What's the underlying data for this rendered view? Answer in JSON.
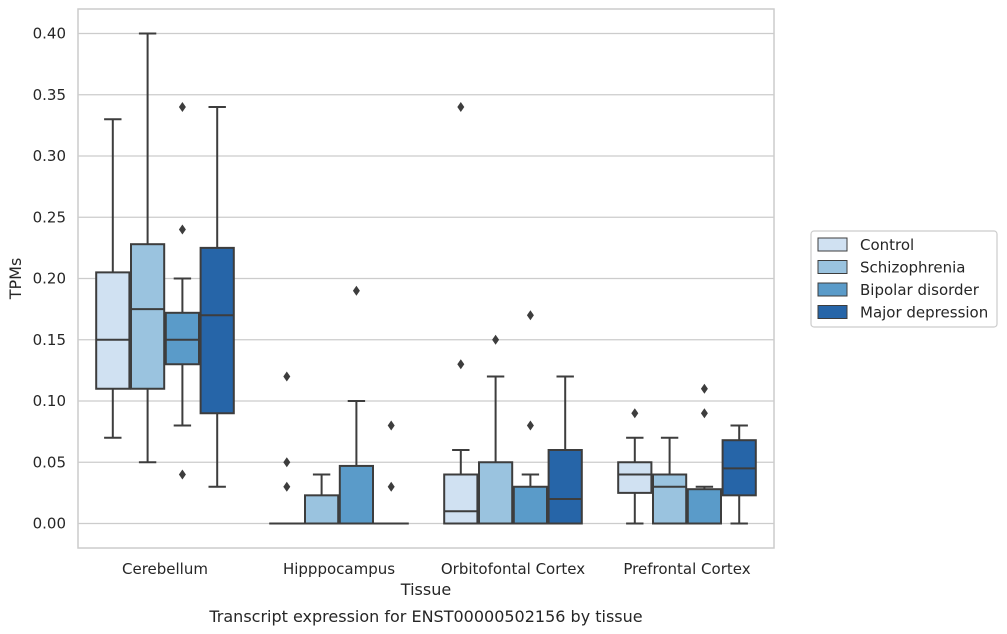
{
  "chart_data": {
    "type": "box",
    "title": "Transcript expression for ENST00000502156 by tissue",
    "xlabel": "Tissue",
    "ylabel": "TPMs",
    "ylim": [
      -0.02,
      0.42
    ],
    "yticks": [
      "0.00",
      "0.05",
      "0.10",
      "0.15",
      "0.20",
      "0.25",
      "0.30",
      "0.35",
      "0.40"
    ],
    "grid": "horizontal",
    "legend_position": "right",
    "categories": [
      "Cerebellum",
      "Hipppocampus",
      "Orbitofontal Cortex",
      "Prefrontal Cortex"
    ],
    "series": [
      {
        "name": "Control",
        "color": "#d0e1f2",
        "boxes": [
          {
            "whislo": 0.07,
            "q1": 0.11,
            "med": 0.15,
            "q3": 0.205,
            "whishi": 0.33,
            "fliers": []
          },
          {
            "whislo": 0.0,
            "q1": 0.0,
            "med": 0.0,
            "q3": 0.0,
            "whishi": 0.0,
            "fliers": [
              0.03,
              0.05,
              0.12
            ]
          },
          {
            "whislo": 0.0,
            "q1": 0.0,
            "med": 0.01,
            "q3": 0.04,
            "whishi": 0.06,
            "fliers": [
              0.13,
              0.34
            ]
          },
          {
            "whislo": 0.0,
            "q1": 0.025,
            "med": 0.04,
            "q3": 0.05,
            "whishi": 0.07,
            "fliers": [
              0.09
            ]
          }
        ]
      },
      {
        "name": "Schizophrenia",
        "color": "#9ac3df",
        "boxes": [
          {
            "whislo": 0.05,
            "q1": 0.11,
            "med": 0.175,
            "q3": 0.228,
            "whishi": 0.4,
            "fliers": []
          },
          {
            "whislo": 0.0,
            "q1": 0.0,
            "med": 0.0,
            "q3": 0.023,
            "whishi": 0.04,
            "fliers": []
          },
          {
            "whislo": 0.0,
            "q1": 0.0,
            "med": 0.0,
            "q3": 0.05,
            "whishi": 0.12,
            "fliers": [
              0.15
            ]
          },
          {
            "whislo": 0.0,
            "q1": 0.0,
            "med": 0.03,
            "q3": 0.04,
            "whishi": 0.07,
            "fliers": []
          }
        ]
      },
      {
        "name": "Bipolar disorder",
        "color": "#5a9bc9",
        "boxes": [
          {
            "whislo": 0.08,
            "q1": 0.13,
            "med": 0.15,
            "q3": 0.172,
            "whishi": 0.2,
            "fliers": [
              0.04,
              0.24,
              0.34
            ]
          },
          {
            "whislo": 0.0,
            "q1": 0.0,
            "med": 0.0,
            "q3": 0.047,
            "whishi": 0.1,
            "fliers": [
              0.19
            ]
          },
          {
            "whislo": 0.0,
            "q1": 0.0,
            "med": 0.0,
            "q3": 0.03,
            "whishi": 0.04,
            "fliers": [
              0.08,
              0.17
            ]
          },
          {
            "whislo": 0.0,
            "q1": 0.0,
            "med": 0.0,
            "q3": 0.028,
            "whishi": 0.03,
            "fliers": [
              0.09,
              0.11
            ]
          }
        ]
      },
      {
        "name": "Major depression",
        "color": "#2665a8",
        "boxes": [
          {
            "whislo": 0.03,
            "q1": 0.09,
            "med": 0.17,
            "q3": 0.225,
            "whishi": 0.34,
            "fliers": []
          },
          {
            "whislo": 0.0,
            "q1": 0.0,
            "med": 0.0,
            "q3": 0.0,
            "whishi": 0.0,
            "fliers": [
              0.03,
              0.08
            ]
          },
          {
            "whislo": 0.0,
            "q1": 0.0,
            "med": 0.02,
            "q3": 0.06,
            "whishi": 0.12,
            "fliers": []
          },
          {
            "whislo": 0.0,
            "q1": 0.023,
            "med": 0.045,
            "q3": 0.068,
            "whishi": 0.08,
            "fliers": []
          }
        ]
      }
    ]
  }
}
